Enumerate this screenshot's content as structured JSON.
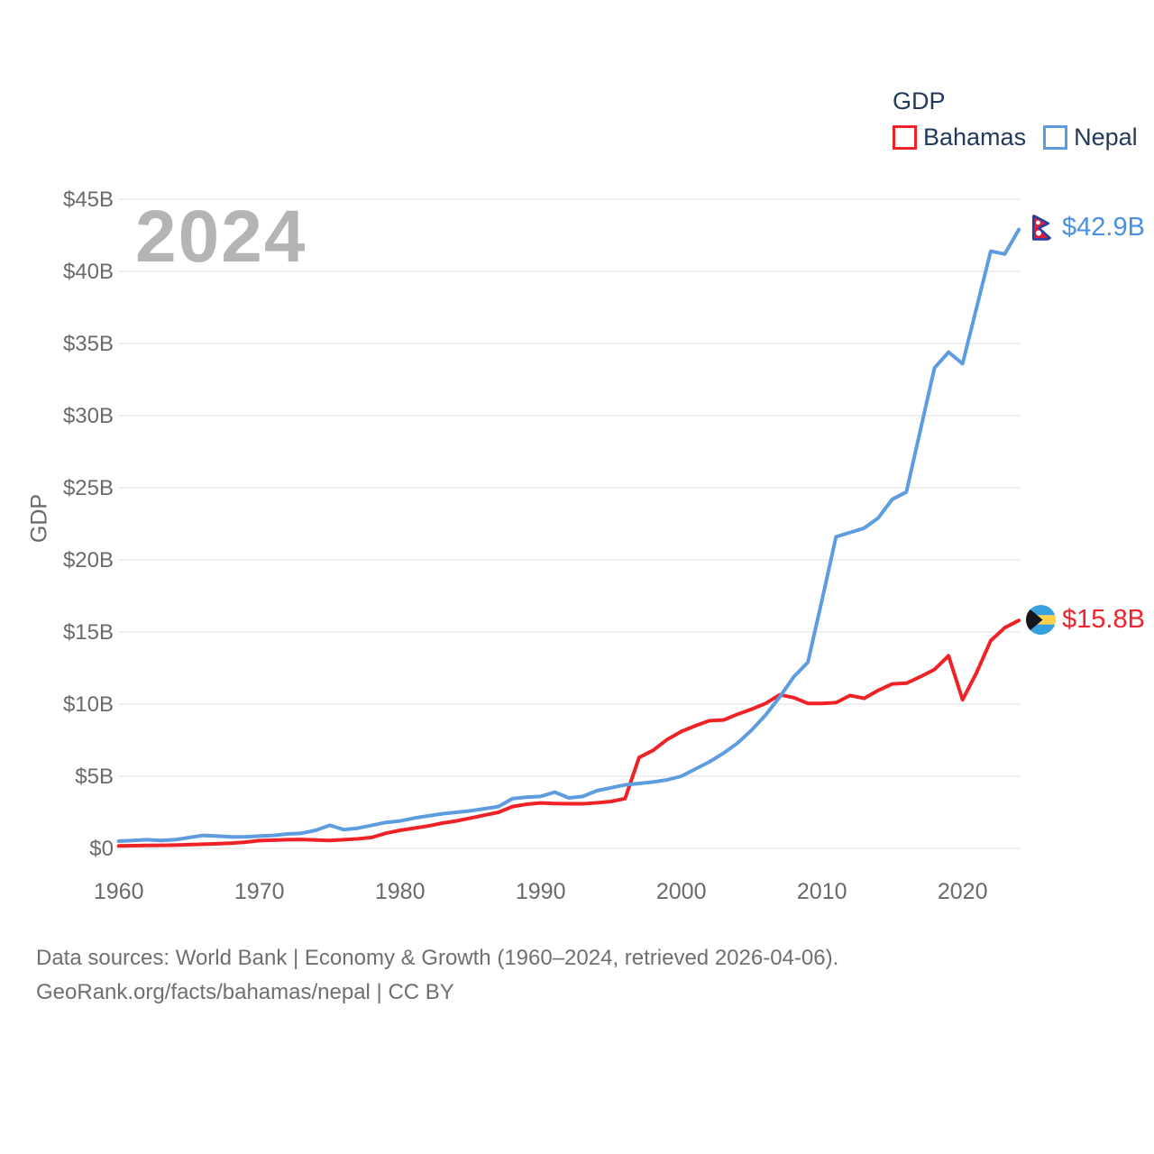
{
  "watermark": "2024",
  "legend": {
    "title": "GDP",
    "items": [
      {
        "label": "Bahamas",
        "color": "#ef2228"
      },
      {
        "label": "Nepal",
        "color": "#5d9cdf"
      }
    ]
  },
  "y_axis": {
    "title": "GDP",
    "ticks": [
      "$0",
      "$5B",
      "$10B",
      "$15B",
      "$20B",
      "$25B",
      "$30B",
      "$35B",
      "$40B",
      "$45B"
    ],
    "tick_values": [
      0,
      5,
      10,
      15,
      20,
      25,
      30,
      35,
      40,
      45
    ]
  },
  "x_axis": {
    "ticks": [
      1960,
      1970,
      1980,
      1990,
      2000,
      2010,
      2020
    ]
  },
  "end_labels": [
    {
      "series": "Nepal",
      "value_label": "$42.9B",
      "color": "#4a90e2",
      "flag": "nepal-flag"
    },
    {
      "series": "Bahamas",
      "value_label": "$15.8B",
      "color": "#f1222b",
      "flag": "bahamas-flag"
    }
  ],
  "footer": {
    "line1": "Data sources: World Bank | Economy & Growth (1960–2024, retrieved 2026-04-06).",
    "line2": "GeoRank.org/facts/bahamas/nepal | CC BY"
  },
  "chart_data": {
    "type": "line",
    "title": "GDP",
    "ylabel": "GDP",
    "ylim": [
      0,
      45
    ],
    "xlim": [
      1960,
      2024
    ],
    "grid": true,
    "legend_position": "top-right",
    "x": [
      1960,
      1961,
      1962,
      1963,
      1964,
      1965,
      1966,
      1967,
      1968,
      1969,
      1970,
      1971,
      1972,
      1973,
      1974,
      1975,
      1976,
      1977,
      1978,
      1979,
      1980,
      1981,
      1982,
      1983,
      1984,
      1985,
      1986,
      1987,
      1988,
      1989,
      1990,
      1991,
      1992,
      1993,
      1994,
      1995,
      1996,
      1997,
      1998,
      1999,
      2000,
      2001,
      2002,
      2003,
      2004,
      2005,
      2006,
      2007,
      2008,
      2009,
      2010,
      2011,
      2012,
      2013,
      2014,
      2015,
      2016,
      2017,
      2018,
      2019,
      2020,
      2021,
      2022,
      2023,
      2024
    ],
    "series": [
      {
        "name": "Bahamas",
        "color": "#ef2228",
        "unit": "billion USD",
        "values": [
          0.17,
          0.19,
          0.2,
          0.21,
          0.23,
          0.26,
          0.29,
          0.32,
          0.36,
          0.43,
          0.54,
          0.57,
          0.6,
          0.62,
          0.58,
          0.55,
          0.6,
          0.66,
          0.76,
          1.05,
          1.25,
          1.4,
          1.55,
          1.75,
          1.9,
          2.1,
          2.3,
          2.5,
          2.9,
          3.06,
          3.15,
          3.11,
          3.09,
          3.09,
          3.16,
          3.25,
          3.45,
          6.3,
          6.8,
          7.55,
          8.1,
          8.5,
          8.85,
          8.9,
          9.3,
          9.65,
          10.05,
          10.65,
          10.45,
          10.05,
          10.05,
          10.1,
          10.6,
          10.4,
          10.95,
          11.4,
          11.45,
          11.9,
          12.4,
          13.35,
          10.3,
          12.2,
          14.4,
          15.3,
          15.8
        ]
      },
      {
        "name": "Nepal",
        "color": "#5d9cdf",
        "unit": "billion USD",
        "values": [
          0.5,
          0.55,
          0.6,
          0.55,
          0.6,
          0.75,
          0.9,
          0.85,
          0.8,
          0.8,
          0.85,
          0.9,
          1.0,
          1.05,
          1.25,
          1.6,
          1.3,
          1.4,
          1.6,
          1.8,
          1.9,
          2.1,
          2.25,
          2.4,
          2.5,
          2.6,
          2.75,
          2.9,
          3.45,
          3.55,
          3.6,
          3.9,
          3.5,
          3.6,
          4.0,
          4.2,
          4.4,
          4.5,
          4.6,
          4.75,
          5.0,
          5.5,
          6.0,
          6.6,
          7.3,
          8.2,
          9.25,
          10.5,
          11.9,
          12.9,
          17.2,
          21.6,
          21.9,
          22.2,
          22.9,
          24.2,
          24.7,
          29.0,
          33.3,
          34.4,
          33.6,
          37.5,
          41.4,
          41.2,
          42.9
        ]
      }
    ]
  }
}
